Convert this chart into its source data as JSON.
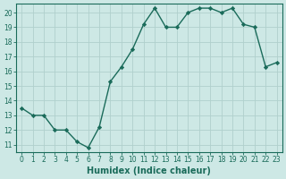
{
  "x": [
    0,
    1,
    2,
    3,
    4,
    5,
    6,
    7,
    8,
    9,
    10,
    11,
    12,
    13,
    14,
    15,
    16,
    17,
    18,
    19,
    20,
    21,
    22,
    23
  ],
  "y": [
    13.5,
    13.0,
    13.0,
    12.0,
    12.0,
    11.2,
    10.8,
    12.2,
    15.3,
    16.3,
    17.5,
    19.2,
    20.3,
    19.0,
    19.0,
    20.0,
    20.3,
    20.3,
    20.0,
    20.3,
    19.2,
    19.0,
    16.3,
    16.6
  ],
  "line_color": "#1a6b5a",
  "marker": "D",
  "markersize": 2.2,
  "linewidth": 1.0,
  "bg_color": "#cde8e5",
  "grid_color_major": "#b0d0cc",
  "grid_color_minor": "#c8e2de",
  "tick_color": "#1a6b5a",
  "xlabel": "Humidex (Indice chaleur)",
  "xlabel_fontsize": 7,
  "xlabel_color": "#1a6b5a",
  "ylabel_ticks": [
    11,
    12,
    13,
    14,
    15,
    16,
    17,
    18,
    19,
    20
  ],
  "xlim": [
    -0.5,
    23.5
  ],
  "ylim": [
    10.5,
    20.6
  ],
  "xtick_labels": [
    "0",
    "1",
    "2",
    "3",
    "4",
    "5",
    "6",
    "7",
    "8",
    "9",
    "10",
    "11",
    "12",
    "13",
    "14",
    "15",
    "16",
    "17",
    "18",
    "19",
    "20",
    "21",
    "22",
    "23"
  ],
  "tick_fontsize": 5.5
}
